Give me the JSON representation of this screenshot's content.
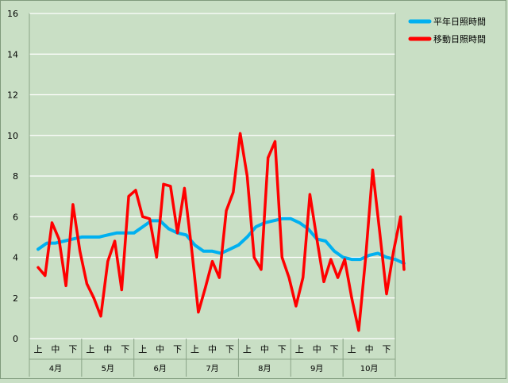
{
  "chart_data": {
    "type": "line",
    "title": "",
    "xlabel": "",
    "ylabel": "",
    "ylim": [
      0,
      16
    ],
    "y_ticks": [
      0,
      2,
      4,
      6,
      8,
      10,
      12,
      14,
      16
    ],
    "grid": true,
    "legend_position": "top-right",
    "x_unit": "half-dekad index (0 = Apr 1, 21 = Oct 31)",
    "months": [
      "4月",
      "5月",
      "6月",
      "7月",
      "8月",
      "9月",
      "10月"
    ],
    "dekad_labels": [
      "上",
      "中",
      "下"
    ],
    "series": [
      {
        "name": "平年日照時間",
        "color": "#00b0f0",
        "x": [
          0,
          0.5,
          1,
          1.5,
          2,
          2.5,
          3,
          3.5,
          4,
          4.5,
          5,
          5.5,
          6,
          6.5,
          7,
          7.5,
          8,
          8.5,
          9,
          9.5,
          10,
          10.5,
          11,
          11.5,
          12,
          12.5,
          13,
          13.5,
          14,
          14.5,
          15,
          15.5,
          16,
          16.5,
          17,
          17.5,
          18,
          18.5,
          19,
          19.5,
          20,
          20.5,
          21
        ],
        "y": [
          4.4,
          4.7,
          4.7,
          4.8,
          4.9,
          5.0,
          5.0,
          5.0,
          5.1,
          5.2,
          5.2,
          5.2,
          5.5,
          5.8,
          5.8,
          5.4,
          5.2,
          5.1,
          4.6,
          4.3,
          4.3,
          4.2,
          4.4,
          4.6,
          5.0,
          5.5,
          5.7,
          5.8,
          5.9,
          5.9,
          5.7,
          5.4,
          4.9,
          4.8,
          4.3,
          4.0,
          3.9,
          3.9,
          4.1,
          4.2,
          4.0,
          3.9,
          3.7
        ]
      },
      {
        "name": "移動日照時間",
        "color": "#ff0000",
        "x": [
          0,
          0.4,
          0.8,
          1.2,
          1.6,
          2.0,
          2.4,
          2.8,
          3.2,
          3.6,
          4.0,
          4.4,
          4.8,
          5.2,
          5.6,
          6.0,
          6.4,
          6.8,
          7.2,
          7.6,
          8.0,
          8.4,
          8.8,
          9.2,
          9.6,
          10.0,
          10.4,
          10.8,
          11.2,
          11.6,
          12.0,
          12.4,
          12.8,
          13.2,
          13.6,
          14.0,
          14.4,
          14.8,
          15.2,
          15.6,
          16.0,
          16.4,
          16.8,
          17.2,
          17.6,
          18.0,
          18.4,
          18.8,
          19.2,
          19.6,
          20.0,
          20.4,
          20.8,
          21.0
        ],
        "y": [
          3.5,
          3.1,
          5.7,
          4.9,
          2.6,
          6.6,
          4.3,
          2.7,
          2.0,
          1.1,
          3.8,
          4.8,
          2.4,
          7.0,
          7.3,
          6.0,
          5.9,
          4.0,
          7.6,
          7.5,
          5.2,
          7.4,
          4.5,
          1.3,
          2.5,
          3.8,
          3.0,
          6.3,
          7.2,
          10.1,
          8.0,
          4.0,
          3.4,
          8.9,
          9.7,
          4.0,
          3.0,
          1.6,
          3.0,
          7.1,
          4.9,
          2.8,
          3.9,
          3.0,
          3.9,
          2.0,
          0.4,
          4.0,
          8.3,
          5.3,
          2.2,
          4.3,
          6.0,
          3.4
        ]
      }
    ]
  }
}
